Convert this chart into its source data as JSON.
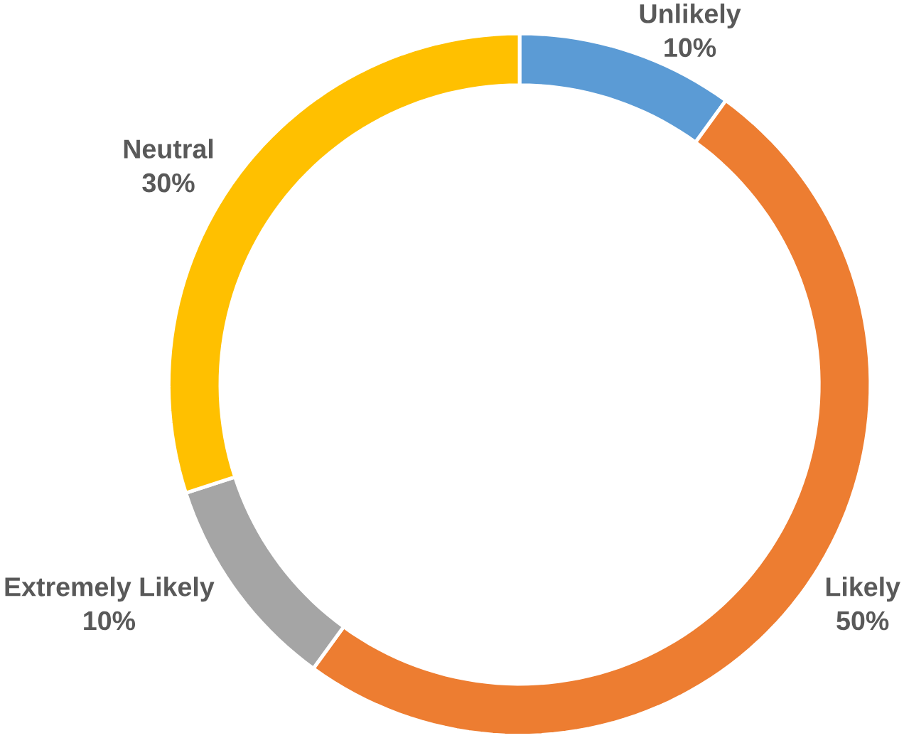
{
  "chart_data": {
    "type": "donut",
    "categories": [
      "Unlikely",
      "Likely",
      "Extremely Likely",
      "Neutral"
    ],
    "values": [
      10,
      50,
      10,
      30
    ],
    "value_labels": [
      "10%",
      "50%",
      "10%",
      "30%"
    ],
    "colors": [
      "#5b9bd5",
      "#ed7d31",
      "#a5a5a5",
      "#ffc000"
    ]
  }
}
